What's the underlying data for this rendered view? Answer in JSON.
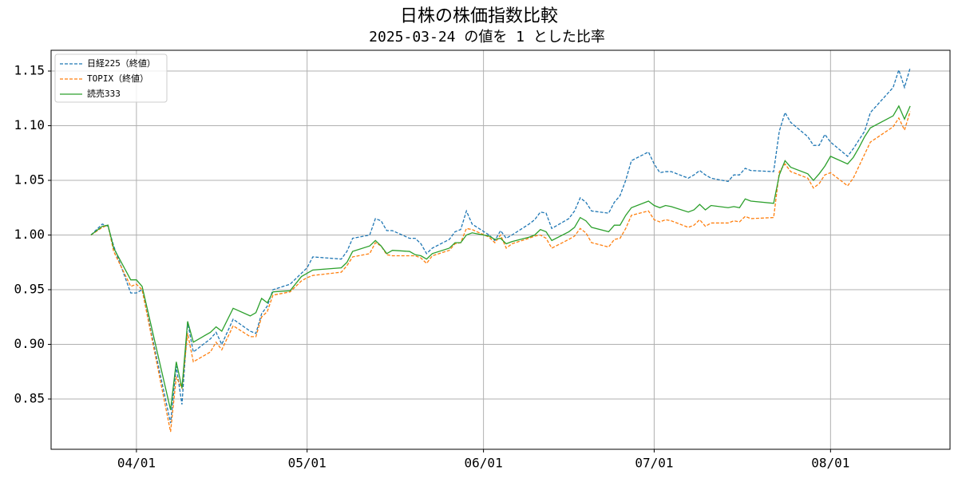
{
  "chart_data": {
    "type": "line",
    "title": "日株の株価指数比較",
    "subtitle": "2025-03-24 の値を 1 とした比率",
    "x": [
      "03/24",
      "03/26",
      "03/27",
      "03/28",
      "03/31",
      "04/01",
      "04/02",
      "04/07",
      "04/08",
      "04/09",
      "04/10",
      "04/11",
      "04/14",
      "04/15",
      "04/16",
      "04/18",
      "04/21",
      "04/22",
      "04/23",
      "04/24",
      "04/25",
      "04/28",
      "04/30",
      "05/01",
      "05/02",
      "05/07",
      "05/08",
      "05/09",
      "05/12",
      "05/13",
      "05/14",
      "05/15",
      "05/16",
      "05/19",
      "05/20",
      "05/21",
      "05/22",
      "05/23",
      "05/26",
      "05/27",
      "05/28",
      "05/29",
      "05/30",
      "06/02",
      "06/03",
      "06/04",
      "06/05",
      "06/06",
      "06/09",
      "06/10",
      "06/11",
      "06/12",
      "06/13",
      "06/16",
      "06/17",
      "06/18",
      "06/19",
      "06/20",
      "06/23",
      "06/24",
      "06/25",
      "06/26",
      "06/27",
      "06/30",
      "07/01",
      "07/02",
      "07/03",
      "07/04",
      "07/07",
      "07/08",
      "07/09",
      "07/10",
      "07/11",
      "07/14",
      "07/15",
      "07/16",
      "07/17",
      "07/18",
      "07/22",
      "07/23",
      "07/24",
      "07/25",
      "07/28",
      "07/29",
      "07/30",
      "07/31",
      "08/01",
      "08/04",
      "08/05",
      "08/06",
      "08/07",
      "08/08",
      "08/12",
      "08/13",
      "08/14",
      "08/15"
    ],
    "series": [
      {
        "name": "日経225（終値）",
        "color": "#1f77b4",
        "linestyle": "dashed",
        "values": [
          1.0,
          1.01,
          1.008,
          0.99,
          0.947,
          0.947,
          0.95,
          0.828,
          0.88,
          0.845,
          0.92,
          0.893,
          0.905,
          0.911,
          0.9,
          0.923,
          0.912,
          0.91,
          0.928,
          0.935,
          0.95,
          0.955,
          0.965,
          0.97,
          0.98,
          0.978,
          0.985,
          0.997,
          1.0,
          1.015,
          1.013,
          1.004,
          1.004,
          0.997,
          0.997,
          0.992,
          0.983,
          0.988,
          0.996,
          1.003,
          1.005,
          1.022,
          1.01,
          1.0,
          0.995,
          1.004,
          0.997,
          1.0,
          1.01,
          1.014,
          1.021,
          1.02,
          1.006,
          1.015,
          1.022,
          1.034,
          1.03,
          1.022,
          1.02,
          1.03,
          1.036,
          1.05,
          1.068,
          1.076,
          1.065,
          1.057,
          1.058,
          1.058,
          1.052,
          1.055,
          1.059,
          1.055,
          1.052,
          1.049,
          1.055,
          1.055,
          1.061,
          1.059,
          1.058,
          1.095,
          1.112,
          1.103,
          1.09,
          1.082,
          1.082,
          1.092,
          1.085,
          1.072,
          1.079,
          1.087,
          1.095,
          1.112,
          1.135,
          1.151,
          1.135,
          1.153
        ]
      },
      {
        "name": "TOPIX（終値）",
        "color": "#ff7f0e",
        "linestyle": "dashed",
        "values": [
          1.0,
          1.007,
          1.009,
          0.985,
          0.953,
          0.955,
          0.95,
          0.82,
          0.87,
          0.86,
          0.91,
          0.884,
          0.893,
          0.902,
          0.895,
          0.917,
          0.907,
          0.907,
          0.925,
          0.93,
          0.945,
          0.948,
          0.958,
          0.961,
          0.963,
          0.966,
          0.972,
          0.98,
          0.983,
          0.993,
          0.99,
          0.982,
          0.981,
          0.981,
          0.981,
          0.979,
          0.974,
          0.981,
          0.986,
          0.992,
          0.993,
          1.006,
          1.005,
          0.998,
          0.993,
          1.0,
          0.988,
          0.992,
          0.997,
          0.999,
          1.0,
          0.997,
          0.988,
          0.996,
          0.999,
          1.006,
          1.002,
          0.993,
          0.989,
          0.996,
          0.997,
          1.006,
          1.018,
          1.022,
          1.014,
          1.012,
          1.014,
          1.013,
          1.007,
          1.009,
          1.014,
          1.008,
          1.011,
          1.011,
          1.013,
          1.012,
          1.017,
          1.015,
          1.016,
          1.058,
          1.065,
          1.058,
          1.052,
          1.043,
          1.047,
          1.055,
          1.057,
          1.045,
          1.052,
          1.063,
          1.074,
          1.085,
          1.099,
          1.107,
          1.096,
          1.113
        ]
      },
      {
        "name": "読売333",
        "color": "#2ca02c",
        "linestyle": "solid",
        "values": [
          1.0,
          1.008,
          1.009,
          0.988,
          0.959,
          0.959,
          0.953,
          0.84,
          0.884,
          0.86,
          0.921,
          0.902,
          0.911,
          0.916,
          0.912,
          0.933,
          0.926,
          0.929,
          0.942,
          0.938,
          0.948,
          0.949,
          0.962,
          0.965,
          0.968,
          0.97,
          0.975,
          0.985,
          0.99,
          0.995,
          0.99,
          0.983,
          0.986,
          0.985,
          0.982,
          0.981,
          0.978,
          0.983,
          0.988,
          0.993,
          0.993,
          1.0,
          1.002,
          0.999,
          0.996,
          0.997,
          0.992,
          0.994,
          0.998,
          1.0,
          1.005,
          1.003,
          0.995,
          1.003,
          1.007,
          1.016,
          1.013,
          1.007,
          1.003,
          1.009,
          1.009,
          1.018,
          1.025,
          1.031,
          1.027,
          1.025,
          1.027,
          1.026,
          1.021,
          1.023,
          1.028,
          1.023,
          1.027,
          1.025,
          1.026,
          1.025,
          1.033,
          1.031,
          1.029,
          1.055,
          1.068,
          1.062,
          1.056,
          1.05,
          1.056,
          1.063,
          1.072,
          1.065,
          1.071,
          1.08,
          1.09,
          1.098,
          1.109,
          1.118,
          1.106,
          1.118
        ]
      }
    ],
    "xlim": [
      "03/17",
      "08/22"
    ],
    "xticks": [
      "04/01",
      "05/01",
      "06/01",
      "07/01",
      "08/01"
    ],
    "ylim": [
      0.804,
      1.169
    ],
    "yticks": [
      0.85,
      {
        "value": 0.9,
        "label": "0.90"
      },
      0.95,
      {
        "value": 1.0,
        "label": "1.00"
      },
      1.05,
      {
        "value": 1.1,
        "label": "1.10"
      },
      1.15
    ],
    "grid": true,
    "legend": "upper left"
  }
}
